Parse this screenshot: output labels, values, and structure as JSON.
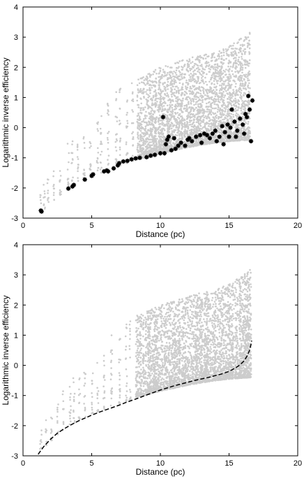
{
  "chart_data": [
    {
      "type": "scatter",
      "xlabel": "Distance (pc)",
      "ylabel": "Logarithmic inverse efficiency",
      "xlim": [
        0,
        20
      ],
      "ylim": [
        -3,
        4
      ],
      "xticks": [
        "0",
        "5",
        "10",
        "15",
        "20"
      ],
      "yticks": [
        "-3",
        "-2",
        "-1",
        "0",
        "1",
        "2",
        "3",
        "4"
      ],
      "grid": false,
      "legend": "none",
      "background_scatter": {
        "color": "#cccccc",
        "distance_range": [
          1.3,
          16.6
        ],
        "lower_envelope": [
          [
            1.3,
            -2.8
          ],
          [
            3.3,
            -2.0
          ],
          [
            5.0,
            -1.6
          ],
          [
            6.0,
            -1.45
          ],
          [
            8.0,
            -1.1
          ],
          [
            10.0,
            -0.85
          ],
          [
            12.0,
            -0.65
          ],
          [
            14.0,
            -0.5
          ],
          [
            15.0,
            -0.45
          ],
          [
            16.6,
            -0.4
          ]
        ],
        "upper_envelope": [
          [
            1.3,
            -2.1
          ],
          [
            3.3,
            -0.5
          ],
          [
            4.0,
            -0.3
          ],
          [
            5.0,
            0.0
          ],
          [
            6.0,
            0.8
          ],
          [
            7.0,
            1.3
          ],
          [
            8.0,
            1.6
          ],
          [
            10.0,
            2.0
          ],
          [
            12.0,
            2.3
          ],
          [
            14.0,
            2.5
          ],
          [
            15.0,
            2.7
          ],
          [
            16.6,
            3.2
          ]
        ]
      },
      "series": [
        {
          "marker": "star",
          "color": "#000000",
          "points": [
            [
              1.3,
              -2.75
            ],
            [
              1.35,
              -2.78
            ],
            [
              3.3,
              -2.02
            ],
            [
              3.6,
              -1.95
            ],
            [
              3.7,
              -1.9
            ],
            [
              4.5,
              -1.72
            ],
            [
              5.0,
              -1.6
            ],
            [
              5.1,
              -1.55
            ],
            [
              5.9,
              -1.45
            ],
            [
              6.1,
              -1.42
            ],
            [
              6.2,
              -1.45
            ],
            [
              6.6,
              -1.35
            ],
            [
              6.9,
              -1.25
            ],
            [
              7.0,
              -1.18
            ],
            [
              7.3,
              -1.12
            ],
            [
              7.6,
              -1.1
            ],
            [
              7.9,
              -1.05
            ],
            [
              8.2,
              -1.02
            ],
            [
              8.5,
              -1.0
            ],
            [
              9.0,
              -0.98
            ],
            [
              9.3,
              -0.93
            ],
            [
              9.6,
              -0.9
            ],
            [
              10.0,
              -0.85
            ],
            [
              10.2,
              0.35
            ],
            [
              10.3,
              -0.85
            ],
            [
              10.4,
              -0.55
            ],
            [
              10.5,
              -0.4
            ],
            [
              10.6,
              -0.3
            ],
            [
              10.8,
              -0.75
            ],
            [
              11.0,
              -0.35
            ],
            [
              11.1,
              -0.7
            ],
            [
              11.3,
              -0.6
            ],
            [
              11.5,
              -0.5
            ],
            [
              11.8,
              -0.6
            ],
            [
              12.0,
              -0.4
            ],
            [
              12.1,
              -0.35
            ],
            [
              12.3,
              -0.45
            ],
            [
              12.6,
              -0.3
            ],
            [
              12.9,
              -0.25
            ],
            [
              13.0,
              -0.5
            ],
            [
              13.2,
              -0.2
            ],
            [
              13.4,
              -0.25
            ],
            [
              13.6,
              -0.35
            ],
            [
              13.8,
              -0.2
            ],
            [
              14.0,
              -0.1
            ],
            [
              14.1,
              -0.45
            ],
            [
              14.3,
              -0.3
            ],
            [
              14.5,
              0.05
            ],
            [
              14.6,
              -0.55
            ],
            [
              14.7,
              -0.15
            ],
            [
              14.9,
              0.1
            ],
            [
              15.0,
              -0.3
            ],
            [
              15.1,
              0.0
            ],
            [
              15.2,
              0.6
            ],
            [
              15.4,
              0.2
            ],
            [
              15.5,
              -0.3
            ],
            [
              15.6,
              -0.1
            ],
            [
              15.8,
              0.3
            ],
            [
              16.0,
              0.1
            ],
            [
              16.1,
              -0.2
            ],
            [
              16.2,
              0.45
            ],
            [
              16.3,
              0.35
            ],
            [
              16.4,
              1.05
            ],
            [
              16.5,
              0.6
            ],
            [
              16.6,
              -0.45
            ],
            [
              16.7,
              0.9
            ]
          ]
        }
      ]
    },
    {
      "type": "scatter",
      "xlabel": "Distance (pc)",
      "ylabel": "Logarithmic inverse efficiency",
      "xlim": [
        0,
        20
      ],
      "ylim": [
        -3,
        4
      ],
      "xticks": [
        "0",
        "5",
        "10",
        "15",
        "20"
      ],
      "yticks": [
        "-3",
        "-2",
        "-1",
        "0",
        "1",
        "2",
        "3",
        "4"
      ],
      "grid": false,
      "legend": "none",
      "background_scatter": {
        "color": "#cccccc",
        "distance_range": [
          1.3,
          16.6
        ],
        "lower_envelope": [
          [
            1.3,
            -2.8
          ],
          [
            3.3,
            -2.0
          ],
          [
            5.0,
            -1.6
          ],
          [
            6.0,
            -1.45
          ],
          [
            8.0,
            -1.1
          ],
          [
            10.0,
            -0.85
          ],
          [
            12.0,
            -0.65
          ],
          [
            14.0,
            -0.5
          ],
          [
            15.0,
            -0.45
          ],
          [
            16.6,
            -0.4
          ]
        ],
        "upper_envelope": [
          [
            1.3,
            -2.1
          ],
          [
            3.3,
            -0.5
          ],
          [
            4.0,
            -0.3
          ],
          [
            5.0,
            0.0
          ],
          [
            6.0,
            0.8
          ],
          [
            7.0,
            1.3
          ],
          [
            8.0,
            1.6
          ],
          [
            10.0,
            2.0
          ],
          [
            12.0,
            2.3
          ],
          [
            14.0,
            2.5
          ],
          [
            15.0,
            2.7
          ],
          [
            16.6,
            3.2
          ]
        ]
      },
      "series": [
        {
          "line": "dashed",
          "color": "#000000",
          "points": [
            [
              1.1,
              -2.95
            ],
            [
              1.5,
              -2.7
            ],
            [
              2.0,
              -2.45
            ],
            [
              2.5,
              -2.25
            ],
            [
              3.0,
              -2.1
            ],
            [
              3.5,
              -1.97
            ],
            [
              4.0,
              -1.85
            ],
            [
              4.5,
              -1.75
            ],
            [
              5.0,
              -1.65
            ],
            [
              5.5,
              -1.56
            ],
            [
              6.0,
              -1.48
            ],
            [
              6.5,
              -1.4
            ],
            [
              7.0,
              -1.32
            ],
            [
              7.5,
              -1.23
            ],
            [
              8.0,
              -1.15
            ],
            [
              8.5,
              -1.07
            ],
            [
              9.0,
              -0.98
            ],
            [
              9.5,
              -0.9
            ],
            [
              10.0,
              -0.82
            ],
            [
              10.5,
              -0.75
            ],
            [
              11.0,
              -0.68
            ],
            [
              11.5,
              -0.62
            ],
            [
              12.0,
              -0.56
            ],
            [
              12.5,
              -0.5
            ],
            [
              13.0,
              -0.45
            ],
            [
              13.5,
              -0.4
            ],
            [
              14.0,
              -0.34
            ],
            [
              14.5,
              -0.28
            ],
            [
              15.0,
              -0.2
            ],
            [
              15.5,
              -0.08
            ],
            [
              15.8,
              0.02
            ],
            [
              16.1,
              0.15
            ],
            [
              16.3,
              0.3
            ],
            [
              16.5,
              0.5
            ],
            [
              16.6,
              0.7
            ],
            [
              16.65,
              0.82
            ]
          ]
        }
      ]
    }
  ]
}
